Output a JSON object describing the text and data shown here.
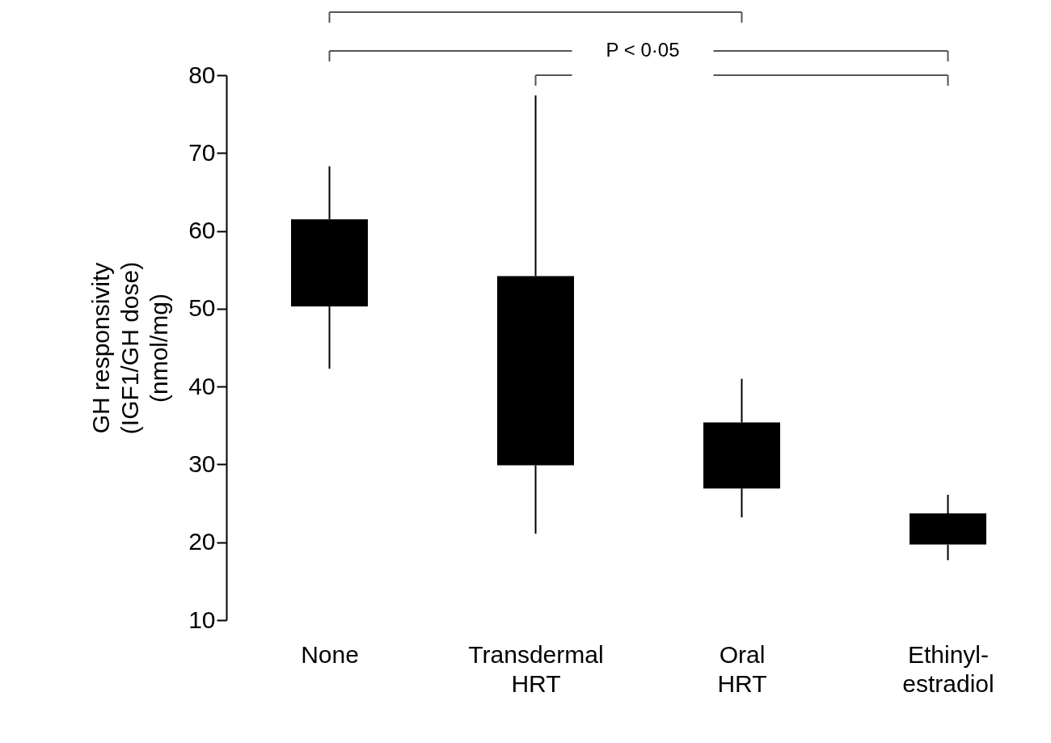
{
  "chart_data": {
    "type": "box",
    "ylabel": "GH responsivity\n(IGF1/GH dose)\n(nmol/mg)",
    "categories": [
      "None",
      "Transdermal\nHRT",
      "Oral\nHRT",
      "Ethinyl-\nestradiol"
    ],
    "boxes": [
      {
        "low": 42.3,
        "q1": 50.3,
        "q3": 61.5,
        "high": 68.3
      },
      {
        "low": 21.1,
        "q1": 29.9,
        "q3": 54.2,
        "high": 77.4
      },
      {
        "low": 23.2,
        "q1": 26.9,
        "q3": 35.4,
        "high": 41.0
      },
      {
        "low": 17.7,
        "q1": 19.7,
        "q3": 23.7,
        "high": 26.1
      }
    ],
    "color": "#000000",
    "ylim": [
      10,
      80
    ],
    "yticks": [
      10,
      20,
      30,
      40,
      50,
      60,
      70,
      80
    ],
    "grid": false,
    "annotations": [
      "P < 0·05"
    ]
  }
}
